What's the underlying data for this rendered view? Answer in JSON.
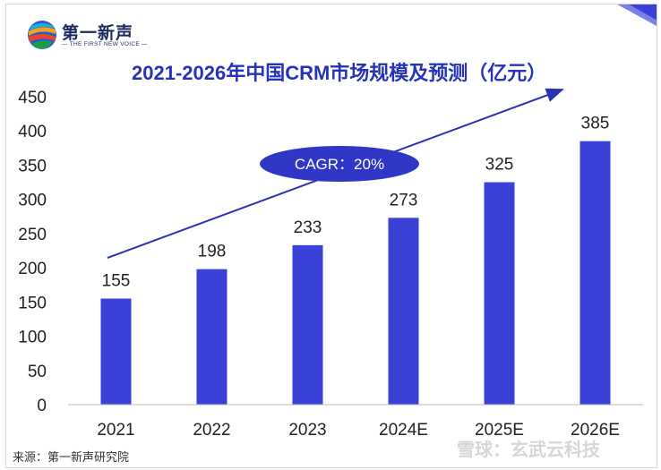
{
  "logo": {
    "name_cn": "第一新声",
    "name_en": "— THE FIRST NEW VOICE —"
  },
  "annotation": "CAGR：20%",
  "source": "来源：第一新声研究院",
  "watermark": "雪球：玄武云科技",
  "colors": {
    "bar": "#3a41d6",
    "title": "#2433b8",
    "ellipse": "#3037c6",
    "arrow": "#2b33b5"
  },
  "chart_data": {
    "type": "bar",
    "title": "2021-2026年中国CRM市场规模及预测（亿元）",
    "categories": [
      "2021",
      "2022",
      "2023",
      "2024E",
      "2025E",
      "2026E"
    ],
    "values": [
      155,
      198,
      233,
      273,
      325,
      385
    ],
    "data_labels": [
      "155",
      "198",
      "233",
      "273",
      "325",
      "385"
    ],
    "y_ticks": [
      "0",
      "50",
      "100",
      "150",
      "200",
      "250",
      "300",
      "350",
      "400",
      "450"
    ],
    "ylim": [
      0,
      450
    ],
    "grid": false,
    "legend": "none"
  }
}
